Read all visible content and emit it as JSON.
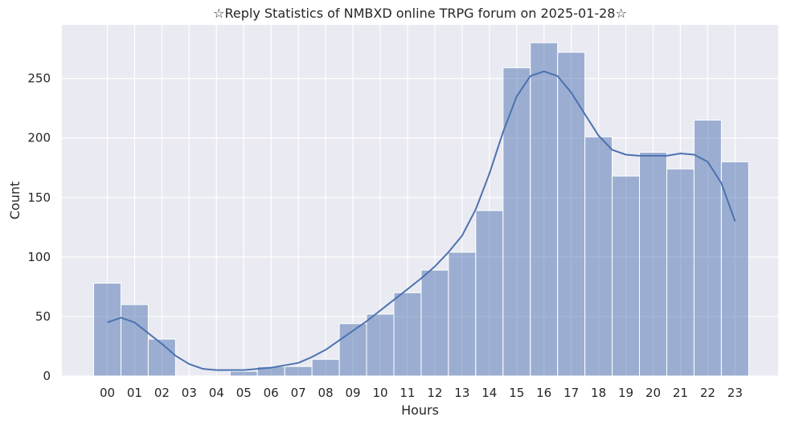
{
  "chart_data": {
    "type": "bar",
    "title": "☆Reply Statistics of NMBXD online TRPG forum on 2025-01-28☆",
    "xlabel": "Hours",
    "ylabel": "Count",
    "categories": [
      "00",
      "01",
      "02",
      "03",
      "04",
      "05",
      "06",
      "07",
      "08",
      "09",
      "10",
      "11",
      "12",
      "13",
      "14",
      "15",
      "16",
      "17",
      "18",
      "19",
      "20",
      "21",
      "22",
      "23"
    ],
    "values": [
      78,
      60,
      31,
      0,
      0,
      4,
      8,
      8,
      14,
      44,
      52,
      70,
      89,
      104,
      139,
      259,
      280,
      272,
      201,
      168,
      188,
      174,
      215,
      180
    ],
    "y_ticks": [
      0,
      50,
      100,
      150,
      200,
      250
    ],
    "ylim": [
      0,
      295
    ],
    "grid": true,
    "kde_line": {
      "x": [
        0,
        0.5,
        1,
        1.5,
        2,
        2.5,
        3,
        3.5,
        4,
        4.5,
        5,
        5.5,
        6,
        6.5,
        7,
        7.5,
        8,
        8.5,
        9,
        9.5,
        10,
        10.5,
        11,
        11.5,
        12,
        12.5,
        13,
        13.5,
        14,
        14.5,
        15,
        15.5,
        16,
        16.5,
        17,
        17.5,
        18,
        18.5,
        19,
        19.5,
        20,
        20.5,
        21,
        21.5,
        22,
        22.5,
        23
      ],
      "y": [
        45,
        49,
        45,
        36,
        27,
        17,
        10,
        6,
        5,
        5,
        5,
        6,
        7,
        9,
        11,
        16,
        22,
        30,
        38,
        46,
        55,
        64,
        73,
        82,
        92,
        104,
        118,
        140,
        170,
        205,
        235,
        252,
        256,
        252,
        238,
        220,
        202,
        190,
        186,
        185,
        185,
        185,
        187,
        186,
        180,
        162,
        130
      ]
    },
    "colors": {
      "bar_fill": "#4c72b0",
      "bar_opacity": 0.5,
      "line": "#4c72b0",
      "plot_bg": "#eaeaf2",
      "grid": "#ffffff"
    }
  }
}
